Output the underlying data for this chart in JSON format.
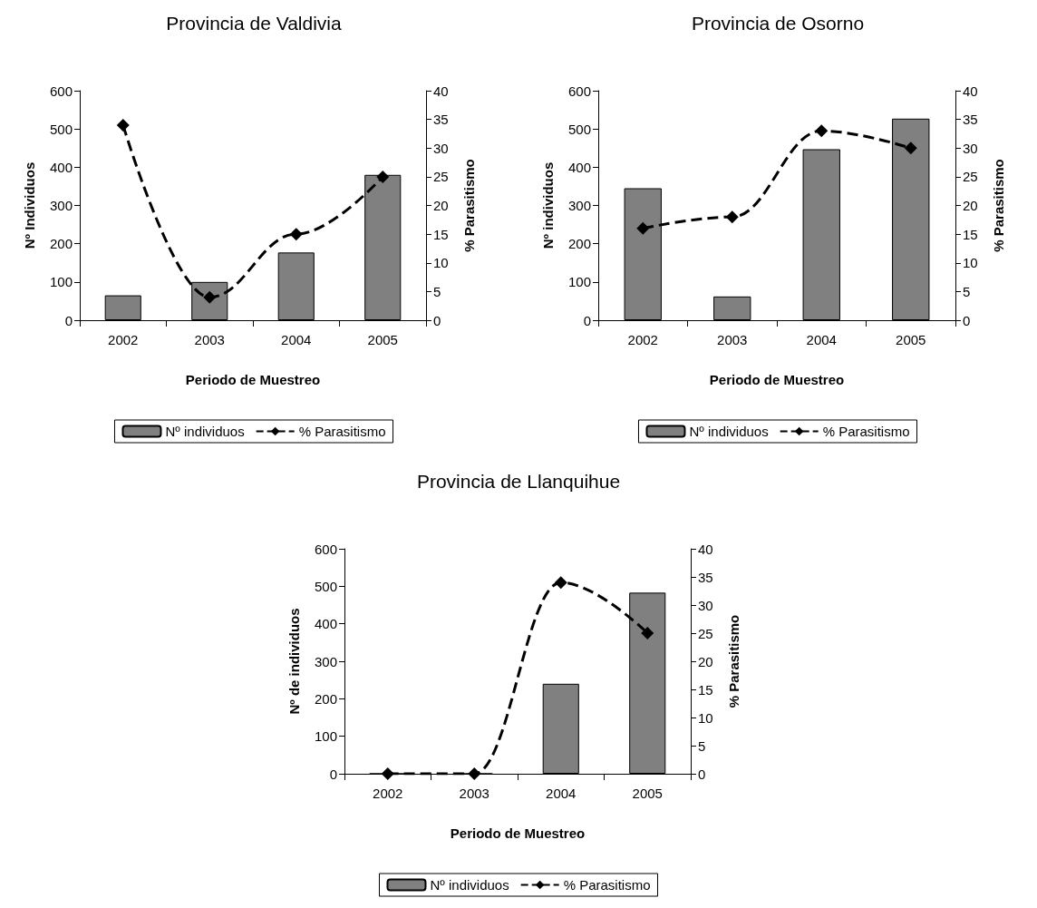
{
  "chart_data": [
    {
      "type": "bar",
      "title": "Provincia de Valdivia",
      "xlabel": "Periodo de Muestreo",
      "ylabel": "Nº Individuos",
      "y2label": "% Parasitismo",
      "categories": [
        "2002",
        "2003",
        "2004",
        "2005"
      ],
      "series": [
        {
          "name": "Nº individuos",
          "color": "#808080",
          "values": [
            65,
            100,
            177,
            380
          ]
        },
        {
          "name": "% Parasitismo",
          "type": "line",
          "axis": "y2",
          "color": "#000000",
          "marker": "diamond",
          "line_style": "dashed",
          "values": [
            34,
            4,
            15,
            25
          ]
        }
      ],
      "ylim": [
        0,
        600
      ],
      "yticks": [
        0,
        100,
        200,
        300,
        400,
        500,
        600
      ],
      "y2lim": [
        0,
        40
      ],
      "y2ticks": [
        0,
        5,
        10,
        15,
        20,
        25,
        30,
        35,
        40
      ],
      "grid": false,
      "legend": "bottom"
    },
    {
      "type": "bar",
      "title": "Provincia de Osorno",
      "xlabel": "Periodo de Muestreo",
      "ylabel": "Nº individuos",
      "y2label": "% Parasitismo",
      "categories": [
        "2002",
        "2003",
        "2004",
        "2005"
      ],
      "series": [
        {
          "name": "Nº individuos",
          "color": "#808080",
          "values": [
            345,
            62,
            447,
            527
          ]
        },
        {
          "name": "% Parasitismo",
          "type": "line",
          "axis": "y2",
          "color": "#000000",
          "marker": "diamond",
          "line_style": "dashed",
          "values": [
            16,
            18,
            33,
            30
          ]
        }
      ],
      "ylim": [
        0,
        600
      ],
      "yticks": [
        0,
        100,
        200,
        300,
        400,
        500,
        600
      ],
      "y2lim": [
        0,
        40
      ],
      "y2ticks": [
        0,
        5,
        10,
        15,
        20,
        25,
        30,
        35,
        40
      ],
      "grid": false,
      "legend": "bottom"
    },
    {
      "type": "bar",
      "title": "Provincia de Llanquihue",
      "xlabel": "Periodo de Muestreo",
      "ylabel": "Nº de individuos",
      "y2label": "% Parasitismo",
      "categories": [
        "2002",
        "2003",
        "2004",
        "2005"
      ],
      "series": [
        {
          "name": "Nº individuos",
          "color": "#808080",
          "values": [
            0,
            0,
            240,
            483
          ]
        },
        {
          "name": "% Parasitismo",
          "type": "line",
          "axis": "y2",
          "color": "#000000",
          "marker": "diamond",
          "line_style": "dashed",
          "values": [
            0,
            0,
            34,
            25
          ]
        }
      ],
      "ylim": [
        0,
        600
      ],
      "yticks": [
        0,
        100,
        200,
        300,
        400,
        500,
        600
      ],
      "y2lim": [
        0,
        40
      ],
      "y2ticks": [
        0,
        5,
        10,
        15,
        20,
        25,
        30,
        35,
        40
      ],
      "grid": false,
      "legend": "bottom"
    }
  ]
}
